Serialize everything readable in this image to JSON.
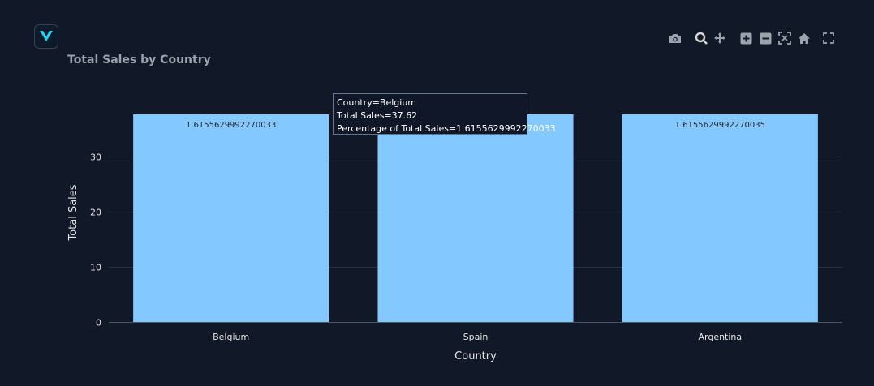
{
  "app": {
    "logo_icon": "vanna-logo-icon",
    "accent": "#22d3ee"
  },
  "modebar": {
    "icons": [
      "camera-icon",
      "zoom-icon",
      "pan-icon",
      "zoom-in-icon",
      "zoom-out-icon",
      "autoscale-icon",
      "home-icon",
      "fullscreen-icon"
    ]
  },
  "chart_data": {
    "type": "bar",
    "title": "Total Sales by Country",
    "xlabel": "Country",
    "ylabel": "Total Sales",
    "categories": [
      "Belgium",
      "Spain",
      "Argentina"
    ],
    "values": [
      37.62,
      37.62,
      37.62
    ],
    "bar_text": [
      "1.6155629992270033",
      "",
      "1.6155629992270035"
    ],
    "ylim": [
      0,
      37.62
    ],
    "yticks": [
      0,
      10,
      20,
      30
    ],
    "grid": true,
    "bar_color": "#83c9ff"
  },
  "tooltip": {
    "line1": "Country=Belgium",
    "line2": "Total Sales=37.62",
    "line3": "Percentage of Total Sales=1.6155629992270033"
  }
}
